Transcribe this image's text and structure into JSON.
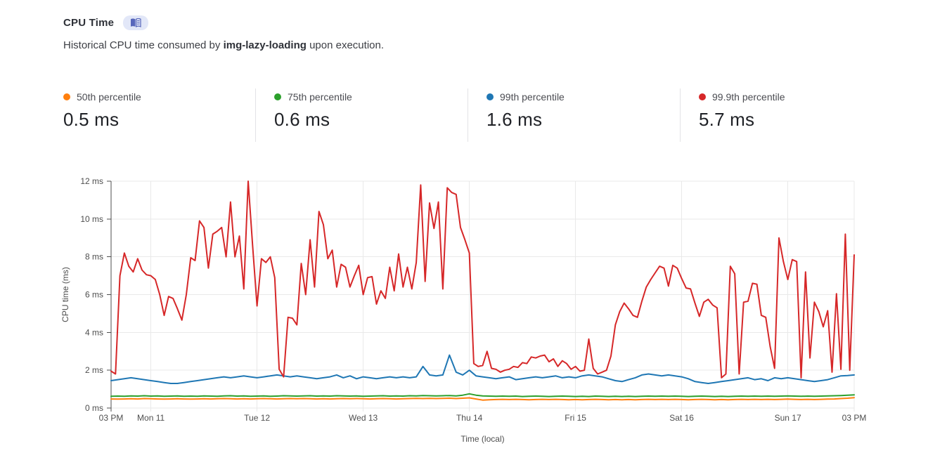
{
  "header": {
    "title": "CPU Time",
    "doc_icon": "book-icon",
    "subtitle_prefix": "Historical CPU time consumed by ",
    "subtitle_worker": "img-lazy-loading",
    "subtitle_suffix": " upon execution."
  },
  "stats": [
    {
      "label": "50th percentile",
      "value": "0.5 ms",
      "color": "#ff7f0e"
    },
    {
      "label": "75th percentile",
      "value": "0.6 ms",
      "color": "#2ca02c"
    },
    {
      "label": "99th percentile",
      "value": "1.6 ms",
      "color": "#1f77b4"
    },
    {
      "label": "99.9th percentile",
      "value": "5.7 ms",
      "color": "#d62728"
    }
  ],
  "chart_data": {
    "type": "line",
    "title": "",
    "xlabel": "Time (local)",
    "ylabel": "CPU time (ms)",
    "ylim": [
      0,
      12
    ],
    "x_span_hours": 168,
    "grid": true,
    "legend_position": "stat-cards-above",
    "y_ticks": [
      "0 ms",
      "2 ms",
      "4 ms",
      "6 ms",
      "8 ms",
      "10 ms",
      "12 ms"
    ],
    "x_ticks": [
      {
        "label": "03 PM",
        "t": 0
      },
      {
        "label": "Mon 11",
        "t": 9
      },
      {
        "label": "Tue 12",
        "t": 33
      },
      {
        "label": "Wed 13",
        "t": 57
      },
      {
        "label": "Thu 14",
        "t": 81
      },
      {
        "label": "Fri 15",
        "t": 105
      },
      {
        "label": "Sat 16",
        "t": 129
      },
      {
        "label": "Sun 17",
        "t": 153
      },
      {
        "label": "03 PM",
        "t": 168
      }
    ],
    "colors": {
      "grid": "#e9e9e9",
      "axis": "#4d4d4d",
      "text": "#4e4e4e"
    },
    "series": [
      {
        "name": "50th percentile",
        "color": "#ff7f0e",
        "values": [
          0.48,
          0.47,
          0.48,
          0.49,
          0.48,
          0.5,
          0.49,
          0.48,
          0.47,
          0.48,
          0.49,
          0.48,
          0.47,
          0.48,
          0.49,
          0.48,
          0.49,
          0.5,
          0.49,
          0.48,
          0.49,
          0.48,
          0.49,
          0.5,
          0.49,
          0.48,
          0.49,
          0.5,
          0.49,
          0.5,
          0.49,
          0.48,
          0.49,
          0.48,
          0.49,
          0.5,
          0.49,
          0.5,
          0.49,
          0.48,
          0.49,
          0.5,
          0.49,
          0.48,
          0.49,
          0.5,
          0.51,
          0.5,
          0.51,
          0.5,
          0.51,
          0.52,
          0.5,
          0.52,
          0.54,
          0.48,
          0.42,
          0.44,
          0.45,
          0.46,
          0.45,
          0.46,
          0.45,
          0.44,
          0.45,
          0.46,
          0.45,
          0.46,
          0.45,
          0.44,
          0.45,
          0.44,
          0.45,
          0.46,
          0.45,
          0.44,
          0.45,
          0.44,
          0.45,
          0.44,
          0.45,
          0.46,
          0.45,
          0.46,
          0.45,
          0.46,
          0.45,
          0.44,
          0.45,
          0.46,
          0.45,
          0.44,
          0.45,
          0.44,
          0.45,
          0.46,
          0.45,
          0.46,
          0.45,
          0.46,
          0.45,
          0.46,
          0.47,
          0.46,
          0.45,
          0.46,
          0.45,
          0.46,
          0.47,
          0.48,
          0.5,
          0.52,
          0.55
        ]
      },
      {
        "name": "75th percentile",
        "color": "#2ca02c",
        "values": [
          0.62,
          0.63,
          0.62,
          0.64,
          0.63,
          0.65,
          0.63,
          0.64,
          0.62,
          0.63,
          0.64,
          0.62,
          0.63,
          0.62,
          0.64,
          0.63,
          0.62,
          0.64,
          0.65,
          0.63,
          0.64,
          0.62,
          0.63,
          0.64,
          0.62,
          0.63,
          0.65,
          0.64,
          0.63,
          0.64,
          0.65,
          0.63,
          0.64,
          0.63,
          0.65,
          0.64,
          0.63,
          0.64,
          0.62,
          0.63,
          0.64,
          0.65,
          0.63,
          0.64,
          0.63,
          0.65,
          0.64,
          0.66,
          0.65,
          0.64,
          0.65,
          0.66,
          0.64,
          0.68,
          0.75,
          0.68,
          0.64,
          0.63,
          0.62,
          0.63,
          0.62,
          0.63,
          0.61,
          0.62,
          0.63,
          0.62,
          0.61,
          0.62,
          0.63,
          0.62,
          0.61,
          0.62,
          0.61,
          0.63,
          0.62,
          0.61,
          0.62,
          0.61,
          0.62,
          0.61,
          0.62,
          0.63,
          0.62,
          0.63,
          0.62,
          0.63,
          0.62,
          0.61,
          0.62,
          0.63,
          0.62,
          0.61,
          0.62,
          0.61,
          0.62,
          0.63,
          0.62,
          0.63,
          0.62,
          0.63,
          0.62,
          0.63,
          0.64,
          0.63,
          0.62,
          0.63,
          0.62,
          0.63,
          0.64,
          0.65,
          0.66,
          0.68,
          0.7
        ]
      },
      {
        "name": "99th percentile",
        "color": "#1f77b4",
        "values": [
          1.45,
          1.5,
          1.55,
          1.6,
          1.55,
          1.5,
          1.45,
          1.4,
          1.35,
          1.3,
          1.3,
          1.35,
          1.4,
          1.45,
          1.5,
          1.55,
          1.6,
          1.65,
          1.6,
          1.65,
          1.7,
          1.65,
          1.6,
          1.65,
          1.7,
          1.75,
          1.7,
          1.65,
          1.7,
          1.65,
          1.6,
          1.55,
          1.6,
          1.65,
          1.75,
          1.6,
          1.7,
          1.55,
          1.65,
          1.6,
          1.55,
          1.6,
          1.65,
          1.6,
          1.65,
          1.6,
          1.65,
          2.2,
          1.75,
          1.7,
          1.75,
          2.8,
          1.9,
          1.75,
          2.0,
          1.7,
          1.65,
          1.6,
          1.55,
          1.6,
          1.65,
          1.5,
          1.55,
          1.6,
          1.65,
          1.6,
          1.65,
          1.7,
          1.6,
          1.65,
          1.6,
          1.7,
          1.75,
          1.7,
          1.65,
          1.55,
          1.45,
          1.4,
          1.5,
          1.6,
          1.75,
          1.8,
          1.75,
          1.7,
          1.75,
          1.7,
          1.65,
          1.55,
          1.4,
          1.35,
          1.3,
          1.35,
          1.4,
          1.45,
          1.5,
          1.55,
          1.6,
          1.5,
          1.55,
          1.45,
          1.6,
          1.55,
          1.6,
          1.55,
          1.5,
          1.45,
          1.4,
          1.45,
          1.5,
          1.6,
          1.7,
          1.72,
          1.75
        ]
      },
      {
        "name": "99.9th percentile",
        "color": "#d62728",
        "values": [
          1.95,
          1.8,
          7.0,
          8.2,
          7.5,
          7.2,
          7.9,
          7.3,
          7.05,
          7.0,
          6.8,
          6.0,
          4.9,
          5.9,
          5.8,
          5.25,
          4.65,
          6.0,
          7.95,
          7.8,
          9.9,
          9.55,
          7.4,
          9.2,
          9.35,
          9.55,
          8.0,
          10.9,
          8.0,
          9.1,
          6.3,
          12.0,
          8.6,
          5.4,
          7.9,
          7.7,
          8.0,
          6.9,
          2.05,
          1.65,
          4.8,
          4.75,
          4.4,
          7.65,
          6.0,
          8.9,
          6.4,
          10.4,
          9.7,
          7.9,
          8.35,
          6.4,
          7.6,
          7.45,
          6.4,
          7.0,
          7.55,
          6.0,
          6.9,
          6.95,
          5.5,
          6.2,
          5.8,
          7.45,
          6.2,
          8.15,
          6.4,
          7.45,
          6.3,
          7.7,
          11.8,
          6.7,
          10.85,
          9.5,
          10.9,
          6.3,
          11.65,
          11.4,
          11.3,
          9.55,
          8.9,
          8.2,
          2.35,
          2.2,
          2.25,
          3.0,
          2.1,
          2.05,
          1.9,
          2.0,
          2.05,
          2.2,
          2.15,
          2.4,
          2.35,
          2.7,
          2.65,
          2.75,
          2.8,
          2.45,
          2.6,
          2.2,
          2.5,
          2.35,
          2.05,
          2.2,
          1.95,
          2.0,
          3.65,
          2.1,
          1.8,
          1.9,
          2.0,
          2.75,
          4.4,
          5.1,
          5.55,
          5.25,
          4.9,
          4.8,
          5.65,
          6.4,
          6.8,
          7.15,
          7.5,
          7.4,
          6.45,
          7.55,
          7.4,
          6.85,
          6.35,
          6.3,
          5.55,
          4.85,
          5.6,
          5.75,
          5.45,
          5.3,
          1.6,
          1.8,
          7.5,
          7.1,
          1.8,
          5.6,
          5.65,
          6.6,
          6.55,
          4.9,
          4.8,
          3.25,
          2.1,
          9.0,
          7.75,
          6.8,
          7.85,
          7.75,
          1.6,
          7.2,
          2.65,
          5.6,
          5.1,
          4.3,
          5.15,
          1.9,
          6.05,
          2.05,
          9.2,
          2.0,
          8.1
        ]
      }
    ]
  }
}
